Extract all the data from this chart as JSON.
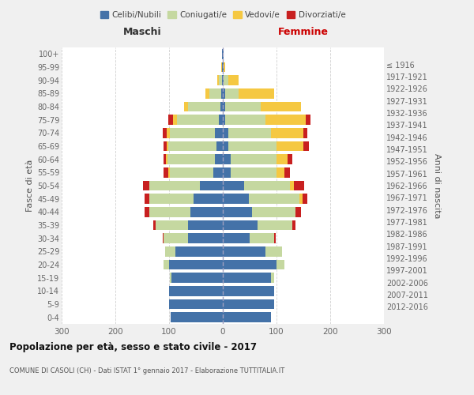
{
  "age_groups": [
    "0-4",
    "5-9",
    "10-14",
    "15-19",
    "20-24",
    "25-29",
    "30-34",
    "35-39",
    "40-44",
    "45-49",
    "50-54",
    "55-59",
    "60-64",
    "65-69",
    "70-74",
    "75-79",
    "80-84",
    "85-89",
    "90-94",
    "95-99",
    "100+"
  ],
  "birth_years": [
    "2012-2016",
    "2007-2011",
    "2002-2006",
    "1997-2001",
    "1992-1996",
    "1987-1991",
    "1982-1986",
    "1977-1981",
    "1972-1976",
    "1967-1971",
    "1962-1966",
    "1957-1961",
    "1952-1956",
    "1947-1951",
    "1942-1946",
    "1937-1941",
    "1932-1936",
    "1927-1931",
    "1922-1926",
    "1917-1921",
    "≤ 1916"
  ],
  "maschi": {
    "celibi": [
      97,
      100,
      100,
      95,
      100,
      88,
      65,
      65,
      60,
      55,
      42,
      17,
      15,
      12,
      14,
      8,
      5,
      3,
      2,
      1,
      1
    ],
    "coniugati": [
      0,
      0,
      0,
      3,
      10,
      20,
      45,
      60,
      77,
      82,
      95,
      82,
      88,
      90,
      85,
      78,
      60,
      22,
      5,
      1,
      0
    ],
    "vedovi": [
      0,
      0,
      0,
      0,
      0,
      0,
      0,
      0,
      0,
      0,
      0,
      3,
      3,
      3,
      5,
      7,
      7,
      8,
      4,
      1,
      0
    ],
    "divorziati": [
      0,
      0,
      0,
      0,
      0,
      0,
      2,
      5,
      8,
      8,
      12,
      8,
      5,
      5,
      8,
      8,
      0,
      0,
      0,
      0,
      0
    ]
  },
  "femmine": {
    "nubili": [
      90,
      95,
      95,
      90,
      100,
      80,
      50,
      65,
      55,
      48,
      40,
      15,
      15,
      10,
      10,
      5,
      5,
      5,
      2,
      1,
      1
    ],
    "coniugate": [
      0,
      0,
      0,
      5,
      15,
      30,
      45,
      65,
      80,
      95,
      85,
      85,
      85,
      90,
      80,
      75,
      65,
      25,
      8,
      1,
      0
    ],
    "vedove": [
      0,
      0,
      0,
      0,
      0,
      0,
      0,
      0,
      0,
      5,
      8,
      15,
      20,
      50,
      60,
      75,
      75,
      65,
      20,
      2,
      0
    ],
    "divorziate": [
      0,
      0,
      0,
      0,
      0,
      0,
      3,
      5,
      10,
      10,
      18,
      10,
      10,
      10,
      8,
      8,
      0,
      0,
      0,
      0,
      0
    ]
  },
  "colors": {
    "celibi": "#4472a8",
    "coniugati": "#c5d8a0",
    "vedovi": "#f5c842",
    "divorziati": "#c82020"
  },
  "title": "Popolazione per età, sesso e stato civile - 2017",
  "subtitle": "COMUNE DI CASOLI (CH) - Dati ISTAT 1° gennaio 2017 - Elaborazione TUTTITALIA.IT",
  "xlabel_left": "Maschi",
  "xlabel_right": "Femmine",
  "ylabel_left": "Fasce di età",
  "ylabel_right": "Anni di nascita",
  "xlim": 300,
  "background_color": "#f0f0f0",
  "plot_background": "#ffffff",
  "legend_labels": [
    "Celibi/Nubili",
    "Coniugati/e",
    "Vedovi/e",
    "Divorziati/e"
  ]
}
